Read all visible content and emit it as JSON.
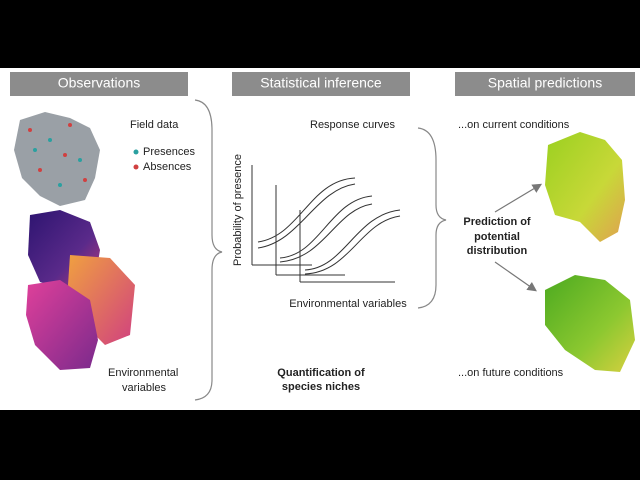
{
  "headers": [
    "Observations",
    "Statistical inference",
    "Spatial predictions"
  ],
  "observations": {
    "field_data": "Field data",
    "presences": "Presences",
    "absences": "Absences",
    "environmental_variables": [
      "Environmental",
      "variables"
    ]
  },
  "inference": {
    "response_curves": "Response curves",
    "y_axis_label": "Probability of presence",
    "x_axis_label": "Environmental variables",
    "caption": [
      "Quantification of",
      "species niches"
    ]
  },
  "predictions": {
    "current": "...on current conditions",
    "future": "...on future conditions",
    "caption": [
      "Prediction of",
      "potential",
      "distribution"
    ]
  }
}
